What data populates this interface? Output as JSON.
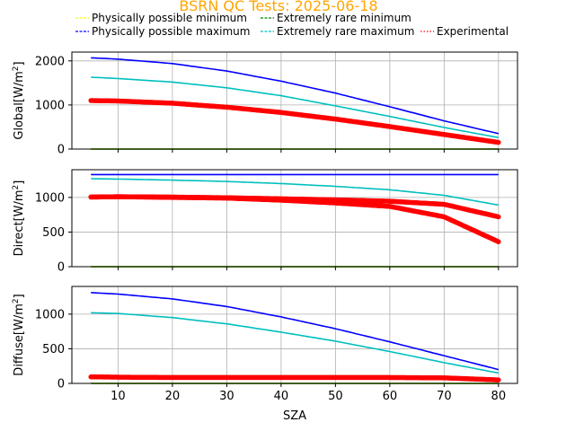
{
  "title": "BSRN QC Tests: 2025-06-18",
  "title_color": "#FFA500",
  "legend": [
    {
      "label": "Physically possible minimum",
      "color": "#FFFF00",
      "style": "dashed"
    },
    {
      "label": "Physically possible maximum",
      "color": "#0000FF",
      "style": "dashed"
    },
    {
      "label": "Extremely rare minimum",
      "color": "#008000",
      "style": "dashed"
    },
    {
      "label": "Extremely rare maximum",
      "color": "#00BFBF",
      "style": "dashed"
    },
    {
      "label": "Experimental",
      "color": "#FF0000",
      "style": "dotted"
    }
  ],
  "chart_data": [
    {
      "type": "line",
      "ylabel": "Global[W/m²]",
      "xlabel": "",
      "xlim": [
        1.5,
        83.5
      ],
      "ylim": [
        0,
        2200
      ],
      "xticks": [
        10,
        20,
        30,
        40,
        50,
        60,
        70,
        80
      ],
      "yticks": [
        0,
        1000,
        2000
      ],
      "grid": true,
      "series": [
        {
          "name": "Physically possible minimum",
          "color": "#FFFF00",
          "x": [
            5,
            80
          ],
          "values": [
            0,
            0
          ]
        },
        {
          "name": "Physically possible maximum",
          "color": "#0000FF",
          "x": [
            5,
            10,
            20,
            30,
            40,
            50,
            60,
            70,
            80
          ],
          "values": [
            2070,
            2040,
            1940,
            1770,
            1540,
            1270,
            960,
            640,
            350
          ]
        },
        {
          "name": "Extremely rare minimum",
          "color": "#008000",
          "x": [
            5,
            80
          ],
          "values": [
            0,
            0
          ]
        },
        {
          "name": "Extremely rare maximum",
          "color": "#00BFBF",
          "x": [
            5,
            10,
            20,
            30,
            40,
            50,
            60,
            70,
            80
          ],
          "values": [
            1630,
            1600,
            1520,
            1390,
            1210,
            980,
            740,
            490,
            260
          ]
        },
        {
          "name": "Experimental",
          "color": "#FF0000",
          "x": [
            5,
            10,
            20,
            30,
            40,
            50,
            60,
            70,
            80
          ],
          "values": [
            1100,
            1090,
            1040,
            950,
            830,
            680,
            510,
            330,
            150
          ]
        }
      ]
    },
    {
      "type": "line",
      "ylabel": "Direct[W/m²]",
      "xlabel": "",
      "xlim": [
        1.5,
        83.5
      ],
      "ylim": [
        0,
        1400
      ],
      "xticks": [
        10,
        20,
        30,
        40,
        50,
        60,
        70,
        80
      ],
      "yticks": [
        0,
        500,
        1000
      ],
      "grid": true,
      "series": [
        {
          "name": "Physically possible minimum",
          "color": "#FFFF00",
          "x": [
            5,
            80
          ],
          "values": [
            0,
            0
          ]
        },
        {
          "name": "Physically possible maximum",
          "color": "#0000FF",
          "x": [
            5,
            80
          ],
          "values": [
            1330,
            1330
          ]
        },
        {
          "name": "Extremely rare minimum",
          "color": "#008000",
          "x": [
            5,
            80
          ],
          "values": [
            0,
            0
          ]
        },
        {
          "name": "Extremely rare maximum",
          "color": "#00BFBF",
          "x": [
            5,
            10,
            20,
            30,
            40,
            50,
            60,
            70,
            80
          ],
          "values": [
            1270,
            1265,
            1250,
            1230,
            1200,
            1160,
            1110,
            1030,
            890
          ]
        },
        {
          "name": "Experimental",
          "color": "#FF0000",
          "x": [
            5,
            10,
            20,
            30,
            40,
            50,
            60,
            70,
            80
          ],
          "values": [
            1005,
            1010,
            1000,
            990,
            960,
            920,
            870,
            720,
            360
          ]
        },
        {
          "name": "Experimental",
          "color": "#FF0000",
          "x": [
            5,
            10,
            20,
            30,
            40,
            50,
            60,
            70,
            80
          ],
          "values": [
            1005,
            1010,
            1005,
            995,
            980,
            965,
            945,
            900,
            720
          ]
        }
      ]
    },
    {
      "type": "line",
      "ylabel": "Diffuse[W/m²]",
      "xlabel": "SZA",
      "xlim": [
        1.5,
        83.5
      ],
      "ylim": [
        0,
        1400
      ],
      "xticks": [
        10,
        20,
        30,
        40,
        50,
        60,
        70,
        80
      ],
      "yticks": [
        0,
        500,
        1000
      ],
      "grid": true,
      "series": [
        {
          "name": "Physically possible minimum",
          "color": "#FFFF00",
          "x": [
            5,
            80
          ],
          "values": [
            0,
            0
          ]
        },
        {
          "name": "Physically possible maximum",
          "color": "#0000FF",
          "x": [
            5,
            10,
            20,
            30,
            40,
            50,
            60,
            70,
            80
          ],
          "values": [
            1310,
            1290,
            1220,
            1110,
            960,
            790,
            600,
            400,
            200
          ]
        },
        {
          "name": "Extremely rare minimum",
          "color": "#008000",
          "x": [
            5,
            80
          ],
          "values": [
            0,
            0
          ]
        },
        {
          "name": "Extremely rare maximum",
          "color": "#00BFBF",
          "x": [
            5,
            10,
            20,
            30,
            40,
            50,
            60,
            70,
            80
          ],
          "values": [
            1020,
            1010,
            950,
            860,
            740,
            610,
            460,
            300,
            150
          ]
        },
        {
          "name": "Experimental",
          "color": "#FF0000",
          "x": [
            5,
            10,
            20,
            30,
            40,
            50,
            60,
            70,
            80
          ],
          "values": [
            95,
            90,
            85,
            85,
            85,
            85,
            85,
            80,
            50
          ]
        }
      ]
    }
  ]
}
